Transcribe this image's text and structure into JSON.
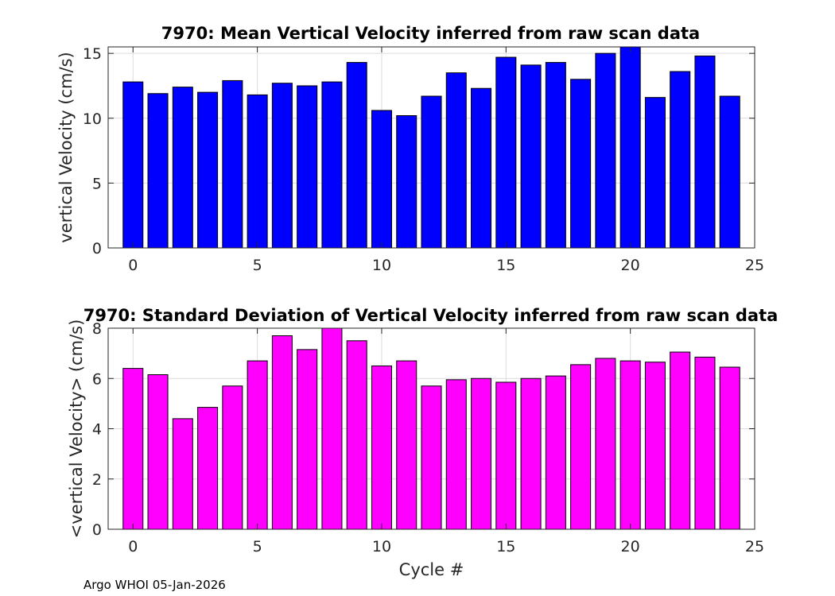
{
  "chart_data": [
    {
      "type": "bar",
      "title": "7970: Mean Vertical Velocity inferred from raw scan data",
      "xlabel": "",
      "ylabel": "vertical Velocity (cm/s)",
      "xlim": [
        -1,
        25
      ],
      "ylim": [
        0,
        15.5
      ],
      "xticks": [
        0,
        5,
        10,
        15,
        20,
        25
      ],
      "yticks": [
        0,
        5,
        10,
        15
      ],
      "grid": true,
      "color": "#0000ff",
      "x": [
        0,
        1,
        2,
        3,
        4,
        5,
        6,
        7,
        8,
        9,
        10,
        11,
        12,
        13,
        14,
        15,
        16,
        17,
        18,
        19,
        20,
        21,
        22,
        23,
        24
      ],
      "values": [
        12.8,
        11.9,
        12.4,
        12.0,
        12.9,
        11.8,
        12.7,
        12.5,
        12.8,
        14.3,
        10.6,
        10.2,
        11.7,
        13.5,
        12.3,
        14.7,
        14.1,
        14.3,
        13.0,
        15.0,
        15.5,
        11.6,
        13.6,
        14.8,
        11.7
      ]
    },
    {
      "type": "bar",
      "title": "7970: Standard Deviation of Vertical Velocity inferred from raw scan data",
      "xlabel": "Cycle #",
      "ylabel": "<vertical Velocity> (cm/s)",
      "xlim": [
        -1,
        25
      ],
      "ylim": [
        0,
        8
      ],
      "xticks": [
        0,
        5,
        10,
        15,
        20,
        25
      ],
      "yticks": [
        0,
        2,
        4,
        6,
        8
      ],
      "grid": true,
      "color": "#ff00ff",
      "x": [
        0,
        1,
        2,
        3,
        4,
        5,
        6,
        7,
        8,
        9,
        10,
        11,
        12,
        13,
        14,
        15,
        16,
        17,
        18,
        19,
        20,
        21,
        22,
        23,
        24
      ],
      "values": [
        6.4,
        6.15,
        4.4,
        4.85,
        5.7,
        6.7,
        7.7,
        7.15,
        8.0,
        7.5,
        6.5,
        6.7,
        5.7,
        5.95,
        6.0,
        5.85,
        6.0,
        6.1,
        6.55,
        6.8,
        6.7,
        6.65,
        7.05,
        6.85,
        6.45
      ]
    }
  ],
  "footer": "Argo WHOI 05-Jan-2026"
}
